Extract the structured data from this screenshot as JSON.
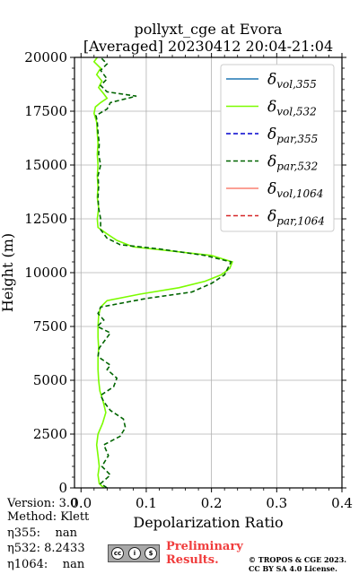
{
  "chart_data": {
    "type": "line",
    "title_line1": "pollyxt_cge at Evora",
    "title_line2": "[Averaged] 20230412 20:04-21:04",
    "xlabel": "Depolarization Ratio",
    "ylabel": "Height (m)",
    "xlim": [
      -0.01,
      0.4
    ],
    "ylim": [
      0,
      20000
    ],
    "xticks": [
      "0.0",
      "0.1",
      "0.2",
      "0.3",
      "0.4"
    ],
    "xtick_values": [
      0,
      0.1,
      0.2,
      0.3,
      0.4
    ],
    "yticks": [
      "0",
      "2500",
      "5000",
      "7500",
      "10000",
      "12500",
      "15000",
      "17500",
      "20000"
    ],
    "ytick_values": [
      0,
      2500,
      5000,
      7500,
      10000,
      12500,
      15000,
      17500,
      20000
    ],
    "grid": true,
    "legend_position": "top-right",
    "series": [
      {
        "name_base": "δ",
        "name_sub": "vol,355",
        "color": "#1f77b4",
        "dash": "solid",
        "points": []
      },
      {
        "name_base": "δ",
        "name_sub": "vol,532",
        "color": "#7cfc00",
        "dash": "solid",
        "points": [
          [
            0.035,
            0
          ],
          [
            0.028,
            200
          ],
          [
            0.026,
            600
          ],
          [
            0.028,
            1000
          ],
          [
            0.026,
            1500
          ],
          [
            0.024,
            2000
          ],
          [
            0.026,
            2500
          ],
          [
            0.033,
            3000
          ],
          [
            0.038,
            3500
          ],
          [
            0.034,
            4000
          ],
          [
            0.029,
            4500
          ],
          [
            0.027,
            5000
          ],
          [
            0.026,
            5500
          ],
          [
            0.026,
            6000
          ],
          [
            0.027,
            6500
          ],
          [
            0.026,
            7000
          ],
          [
            0.026,
            7500
          ],
          [
            0.027,
            8000
          ],
          [
            0.03,
            8400
          ],
          [
            0.04,
            8700
          ],
          [
            0.09,
            9000
          ],
          [
            0.15,
            9300
          ],
          [
            0.19,
            9600
          ],
          [
            0.215,
            9900
          ],
          [
            0.228,
            10200
          ],
          [
            0.232,
            10500
          ],
          [
            0.2,
            10800
          ],
          [
            0.14,
            11000
          ],
          [
            0.08,
            11200
          ],
          [
            0.055,
            11500
          ],
          [
            0.04,
            11800
          ],
          [
            0.026,
            12100
          ],
          [
            0.025,
            12500
          ],
          [
            0.027,
            13000
          ],
          [
            0.025,
            13500
          ],
          [
            0.026,
            14000
          ],
          [
            0.025,
            14500
          ],
          [
            0.026,
            15000
          ],
          [
            0.025,
            15500
          ],
          [
            0.026,
            16000
          ],
          [
            0.025,
            16500
          ],
          [
            0.024,
            17000
          ],
          [
            0.02,
            17400
          ],
          [
            0.022,
            17700
          ],
          [
            0.03,
            17900
          ],
          [
            0.04,
            18100
          ],
          [
            0.035,
            18300
          ],
          [
            0.027,
            18600
          ],
          [
            0.032,
            18900
          ],
          [
            0.024,
            19200
          ],
          [
            0.03,
            19500
          ],
          [
            0.02,
            19800
          ],
          [
            0.025,
            20000
          ]
        ]
      },
      {
        "name_base": "δ",
        "name_sub": "par,355",
        "color": "#0000cd",
        "dash": "dashed",
        "points": []
      },
      {
        "name_base": "δ",
        "name_sub": "par,532",
        "color": "#006400",
        "dash": "dashed",
        "points": [
          [
            0.04,
            0
          ],
          [
            0.03,
            200
          ],
          [
            0.045,
            600
          ],
          [
            0.032,
            1000
          ],
          [
            0.042,
            1500
          ],
          [
            0.035,
            2000
          ],
          [
            0.06,
            2400
          ],
          [
            0.068,
            2800
          ],
          [
            0.065,
            3200
          ],
          [
            0.045,
            3600
          ],
          [
            0.035,
            4000
          ],
          [
            0.03,
            4300
          ],
          [
            0.05,
            4700
          ],
          [
            0.055,
            5100
          ],
          [
            0.04,
            5500
          ],
          [
            0.045,
            5700
          ],
          [
            0.026,
            6100
          ],
          [
            0.028,
            6500
          ],
          [
            0.045,
            7200
          ],
          [
            0.025,
            7500
          ],
          [
            0.035,
            7800
          ],
          [
            0.026,
            8100
          ],
          [
            0.03,
            8400
          ],
          [
            0.1,
            8800
          ],
          [
            0.17,
            9100
          ],
          [
            0.2,
            9500
          ],
          [
            0.22,
            9900
          ],
          [
            0.225,
            10200
          ],
          [
            0.23,
            10500
          ],
          [
            0.19,
            10800
          ],
          [
            0.12,
            11100
          ],
          [
            0.06,
            11300
          ],
          [
            0.04,
            11600
          ],
          [
            0.03,
            12000
          ],
          [
            0.03,
            12500
          ],
          [
            0.027,
            13000
          ],
          [
            0.026,
            13500
          ],
          [
            0.027,
            14000
          ],
          [
            0.026,
            14500
          ],
          [
            0.03,
            15000
          ],
          [
            0.027,
            15500
          ],
          [
            0.028,
            16000
          ],
          [
            0.026,
            16500
          ],
          [
            0.025,
            17000
          ],
          [
            0.023,
            17300
          ],
          [
            0.04,
            17600
          ],
          [
            0.045,
            17900
          ],
          [
            0.085,
            18200
          ],
          [
            0.04,
            18400
          ],
          [
            0.03,
            18700
          ],
          [
            0.04,
            19000
          ],
          [
            0.03,
            19400
          ],
          [
            0.04,
            19700
          ],
          [
            0.03,
            20000
          ]
        ]
      },
      {
        "name_base": "δ",
        "name_sub": "vol,1064",
        "color": "#fa8072",
        "dash": "solid",
        "points": []
      },
      {
        "name_base": "δ",
        "name_sub": "par,1064",
        "color": "#d62728",
        "dash": "dashed",
        "points": []
      }
    ]
  },
  "footer": {
    "version": "Version: 3.0",
    "method": "Method: Klett",
    "eta355": "η355:    nan",
    "eta532": "η532: 8.2433",
    "eta1064": "η1064:    nan",
    "prelim1": "Preliminary",
    "prelim2": "Results.",
    "copy1": "© TROPOS & CGE 2023.",
    "copy2": "CC BY SA 4.0 License."
  }
}
